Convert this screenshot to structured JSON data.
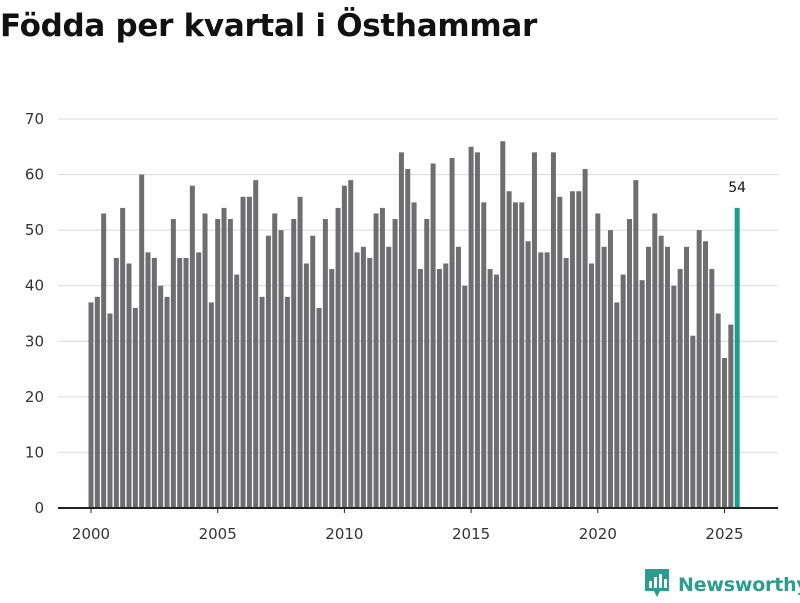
{
  "chart_data": {
    "type": "bar",
    "title": "Födda per kvartal i Östhammar",
    "xlabel": "",
    "ylabel": "",
    "ylim": [
      0,
      70
    ],
    "yticks": [
      0,
      10,
      20,
      30,
      40,
      50,
      60,
      70
    ],
    "xticks": [
      2000,
      2005,
      2010,
      2015,
      2020,
      2025
    ],
    "start": {
      "year": 2000,
      "quarter": 1
    },
    "values": [
      37,
      38,
      53,
      35,
      45,
      54,
      44,
      36,
      60,
      46,
      45,
      40,
      38,
      52,
      45,
      45,
      58,
      46,
      53,
      37,
      52,
      54,
      52,
      42,
      56,
      56,
      59,
      38,
      49,
      53,
      50,
      38,
      52,
      56,
      44,
      49,
      36,
      52,
      43,
      54,
      58,
      59,
      46,
      47,
      45,
      53,
      54,
      47,
      52,
      64,
      61,
      55,
      43,
      52,
      62,
      43,
      44,
      63,
      47,
      40,
      65,
      64,
      55,
      43,
      42,
      66,
      57,
      55,
      55,
      48,
      64,
      46,
      46,
      64,
      56,
      45,
      57,
      57,
      61,
      44,
      53,
      47,
      50,
      37,
      42,
      52,
      59,
      41,
      47,
      53,
      49,
      47,
      40,
      43,
      47,
      31,
      50,
      48,
      43,
      35,
      27,
      33,
      54
    ],
    "highlight": {
      "index": 102,
      "label": "54"
    },
    "colors": {
      "bar": "#6e6e70",
      "highlight": "#1a9e8f",
      "grid": "#d9d9d9",
      "axis": "#222222"
    }
  },
  "branding": {
    "name": "Newsworthy",
    "icon": "newsworthy-logo-icon",
    "color": "#2a9d8f"
  }
}
